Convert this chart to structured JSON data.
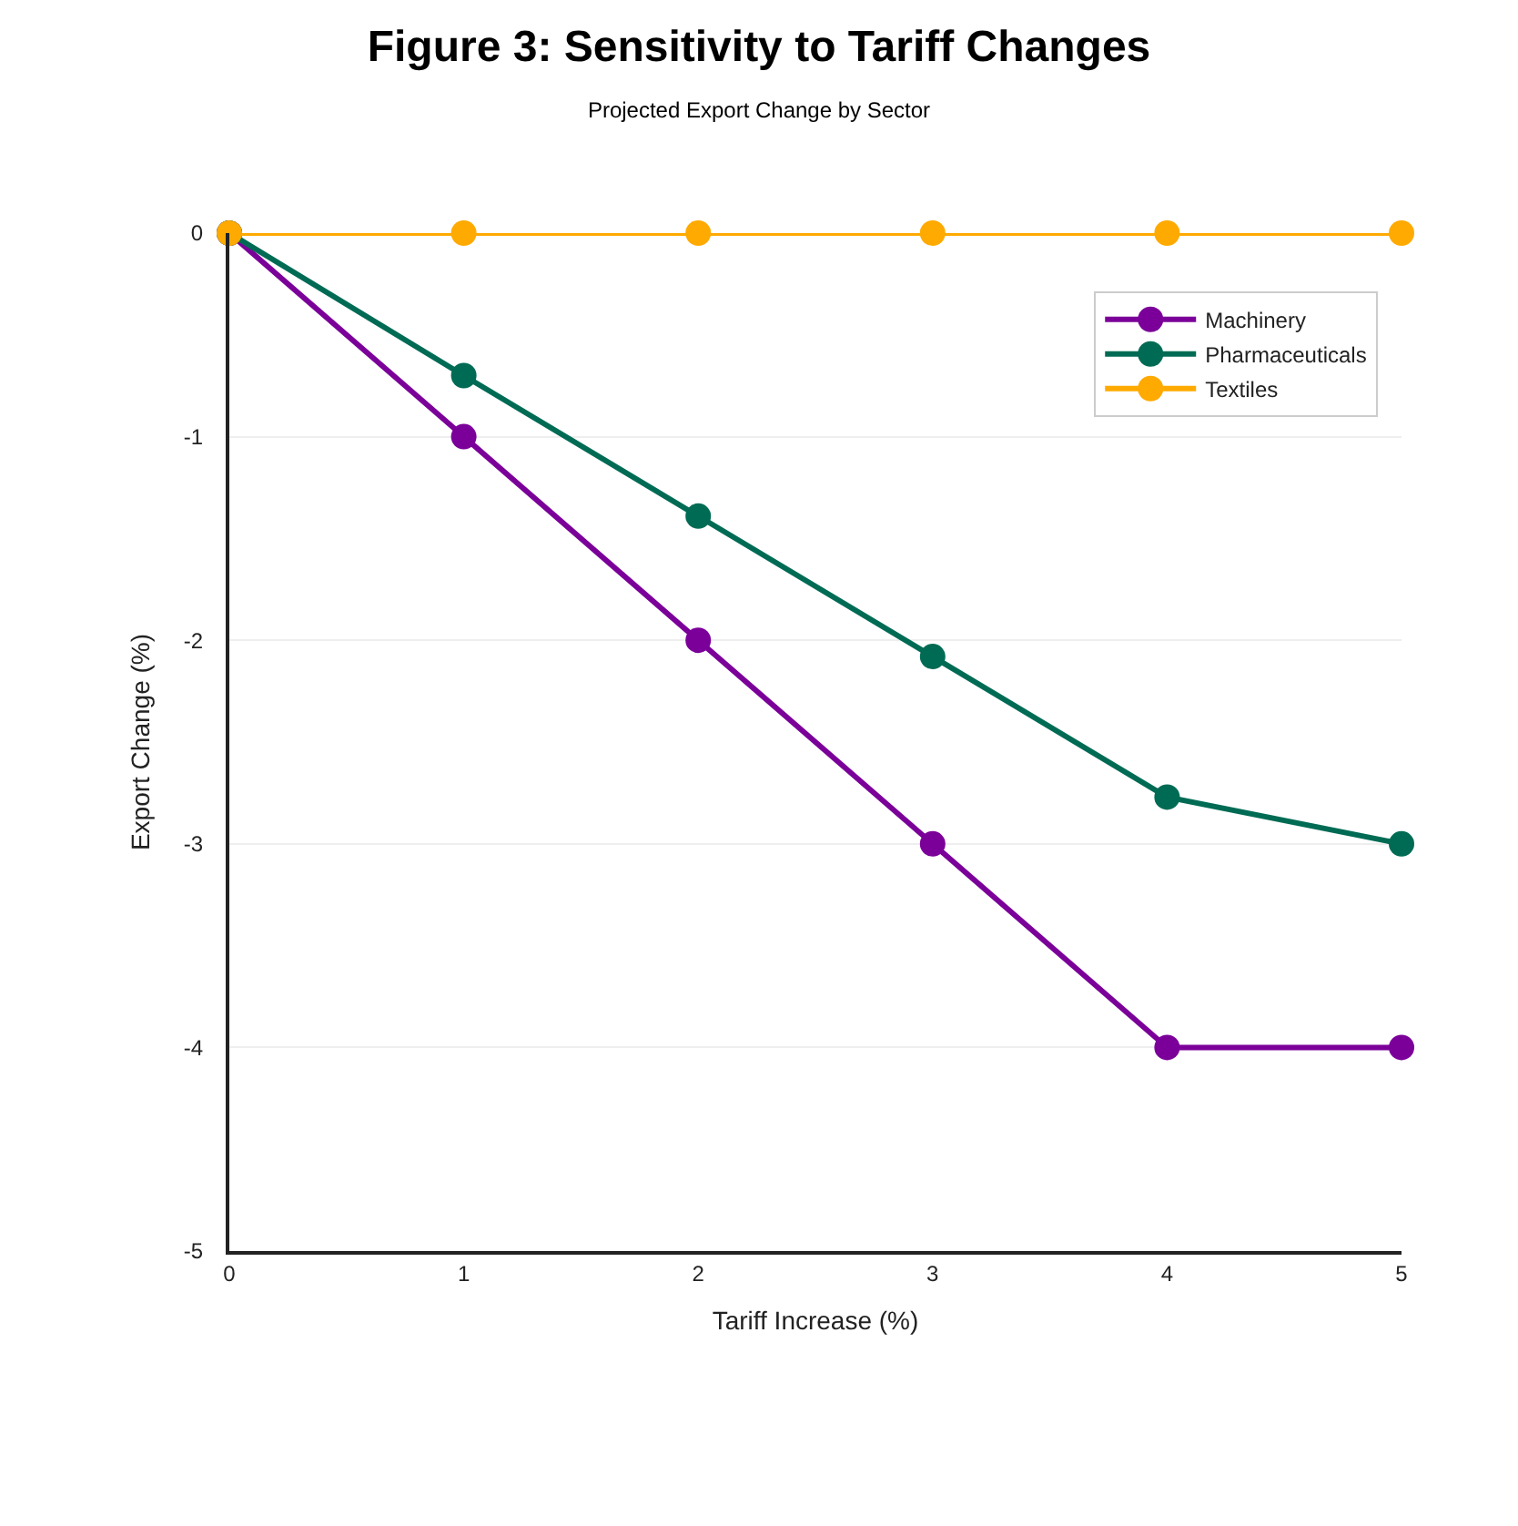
{
  "chart_data": {
    "type": "line",
    "title": "Figure 3: Sensitivity to Tariff Changes",
    "subtitle": "Projected Export Change by Sector",
    "xlabel": "Tariff Increase (%)",
    "ylabel": "Export Change (%)",
    "x": [
      0,
      1,
      2,
      3,
      4,
      5
    ],
    "series": [
      {
        "name": "Machinery",
        "color": "#7b0099",
        "values": [
          0,
          -1,
          -2,
          -3,
          -4,
          -4
        ]
      },
      {
        "name": "Pharmaceuticals",
        "color": "#006b54",
        "values": [
          0,
          -0.7,
          -1.39,
          -2.08,
          -2.77,
          -3
        ]
      },
      {
        "name": "Textiles",
        "color": "#ffaa00",
        "values": [
          0,
          0,
          0,
          0,
          0,
          0
        ]
      }
    ],
    "xlim": [
      0,
      5
    ],
    "xticks": [
      0,
      1,
      2,
      3,
      4,
      5
    ],
    "ylim": [
      -5,
      0
    ],
    "yticks": [
      -5,
      -4,
      -3,
      -2,
      -1,
      0
    ],
    "grid": "y",
    "legend": "top right",
    "marker": "circle",
    "line_style": "solid"
  }
}
